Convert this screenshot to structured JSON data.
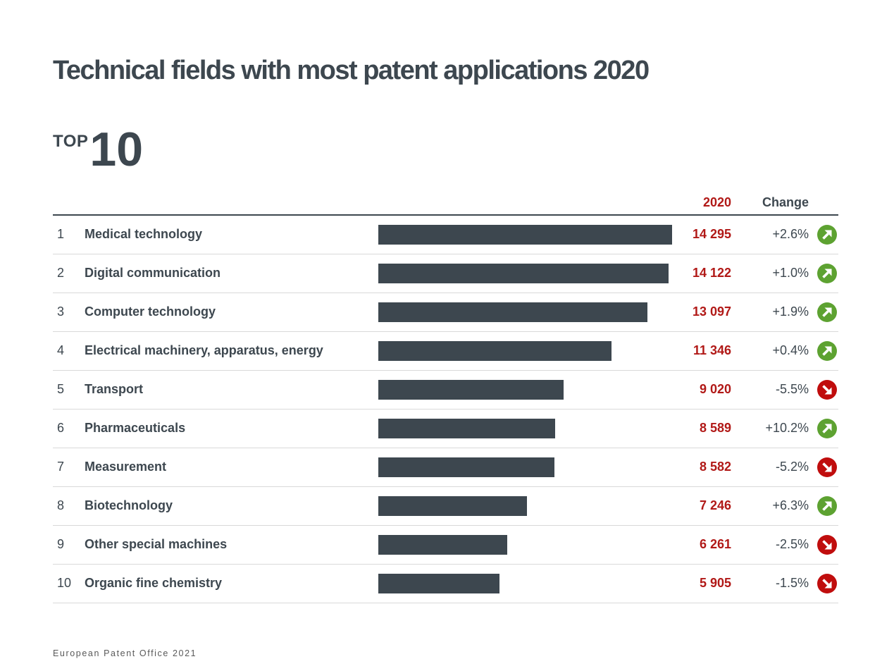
{
  "header": {
    "title": "Technical fields with most patent applications 2020",
    "top_label": "TOP",
    "top_number": "10"
  },
  "table": {
    "header": {
      "year_label": "2020",
      "change_label": "Change"
    },
    "rows": [
      {
        "rank": "1",
        "name": "Medical technology",
        "value": 14295,
        "value_display": "14 295",
        "change": "+2.6%",
        "direction": "up"
      },
      {
        "rank": "2",
        "name": "Digital communication",
        "value": 14122,
        "value_display": "14 122",
        "change": "+1.0%",
        "direction": "up"
      },
      {
        "rank": "3",
        "name": "Computer technology",
        "value": 13097,
        "value_display": "13 097",
        "change": "+1.9%",
        "direction": "up"
      },
      {
        "rank": "4",
        "name": "Electrical machinery, apparatus, energy",
        "value": 11346,
        "value_display": "11 346",
        "change": "+0.4%",
        "direction": "up"
      },
      {
        "rank": "5",
        "name": "Transport",
        "value": 9020,
        "value_display": "9 020",
        "change": "-5.5%",
        "direction": "down"
      },
      {
        "rank": "6",
        "name": "Pharmaceuticals",
        "value": 8589,
        "value_display": "8 589",
        "change": "+10.2%",
        "direction": "up"
      },
      {
        "rank": "7",
        "name": "Measurement",
        "value": 8582,
        "value_display": "8 582",
        "change": "-5.2%",
        "direction": "down"
      },
      {
        "rank": "8",
        "name": "Biotechnology",
        "value": 7246,
        "value_display": "7 246",
        "change": "+6.3%",
        "direction": "up"
      },
      {
        "rank": "9",
        "name": "Other special machines",
        "value": 6261,
        "value_display": "6 261",
        "change": "-2.5%",
        "direction": "down"
      },
      {
        "rank": "10",
        "name": "Organic fine chemistry",
        "value": 5905,
        "value_display": "5 905",
        "change": "-1.5%",
        "direction": "down"
      }
    ]
  },
  "chart_data": {
    "type": "bar",
    "orientation": "horizontal",
    "title": "Technical fields with most patent applications 2020",
    "categories": [
      "Medical technology",
      "Digital communication",
      "Computer technology",
      "Electrical machinery, apparatus, energy",
      "Transport",
      "Pharmaceuticals",
      "Measurement",
      "Biotechnology",
      "Other special machines",
      "Organic fine chemistry"
    ],
    "values": [
      14295,
      14122,
      13097,
      11346,
      9020,
      8589,
      8582,
      7246,
      6261,
      5905
    ],
    "changes_pct": [
      2.6,
      1.0,
      1.9,
      0.4,
      -5.5,
      10.2,
      -5.2,
      6.3,
      -2.5,
      -1.5
    ],
    "value_column_label": "2020",
    "change_column_label": "Change",
    "xmax": 14295,
    "grid": false,
    "legend": false
  },
  "footer": {
    "source": "European Patent Office 2021"
  },
  "icons": {
    "up": "trend-up-circle-icon",
    "down": "trend-down-circle-icon"
  },
  "colors": {
    "dark_slate": "#3d474f",
    "value_red": "#b11917",
    "up_green": "#5da231",
    "down_red": "#c00d0d",
    "separator_gray": "#d9d9d9",
    "footer_gray": "#595959"
  }
}
